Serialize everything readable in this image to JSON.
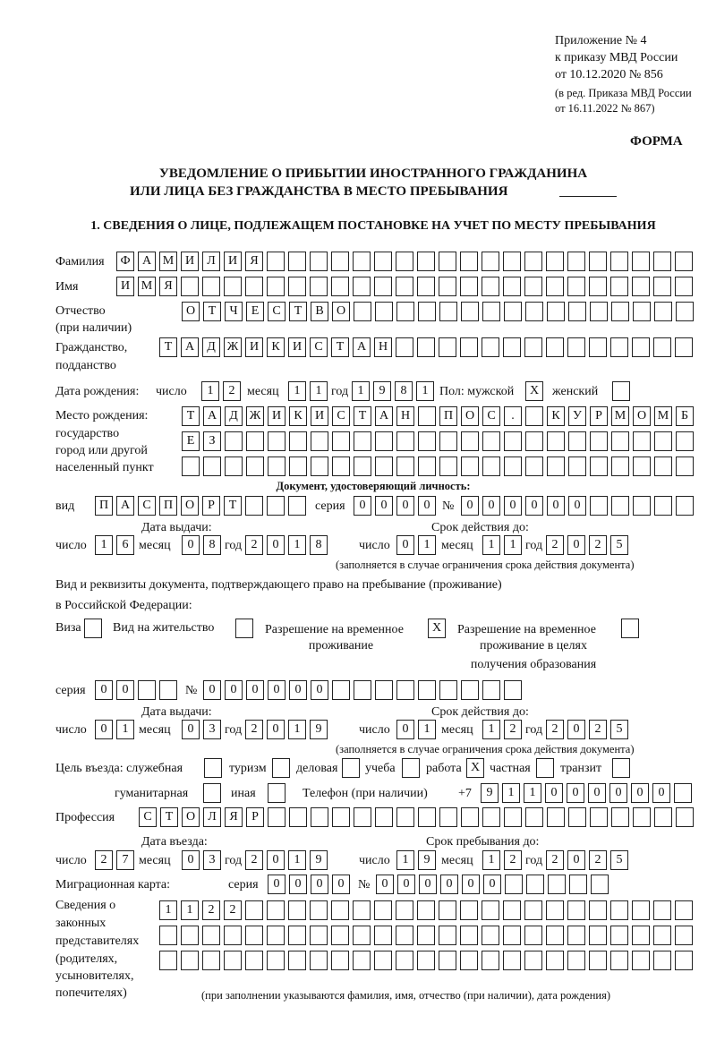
{
  "header": {
    "appendix": "Приложение № 4",
    "order": "к приказу МВД России",
    "order_date": "от 10.12.2020 № 856",
    "rev1": "(в ред. Приказа МВД России",
    "rev2": "от 16.11.2022 № 867)",
    "form": "ФОРМА"
  },
  "title": {
    "line1": "УВЕДОМЛЕНИЕ О ПРИБЫТИИ ИНОСТРАННОГО ГРАЖДАНИНА",
    "line2": "ИЛИ ЛИЦА БЕЗ ГРАЖДАНСТВА В МЕСТО ПРЕБЫВАНИЯ"
  },
  "section1": "1. СВЕДЕНИЯ О ЛИЦЕ, ПОДЛЕЖАЩЕМ ПОСТАНОВКЕ НА УЧЕТ ПО МЕСТУ ПРЕБЫВАНИЯ",
  "labels": {
    "surname": "Фамилия",
    "name": "Имя",
    "patronymic": "Отчество",
    "patronymic2": "(при наличии)",
    "citizenship": "Гражданство,",
    "citizenship2": "подданство",
    "birth_date": "Дата рождения:",
    "day": "число",
    "month": "месяц",
    "year": "год",
    "sex": "Пол: мужской",
    "female": "женский",
    "birthplace1": "Место рождения:",
    "birthplace2": "государство",
    "birthplace3": "город или другой",
    "birthplace4": "населенный пункт",
    "id_doc": "Документ, удостоверяющий личность:",
    "kind": "вид",
    "series": "серия",
    "number": "№",
    "issue_date": "Дата выдачи:",
    "valid_until": "Срок действия до:",
    "valid_note": "(заполняется в случае ограничения срока действия документа)",
    "stay_doc1": "Вид и реквизиты документа, подтверждающего право на пребывание (проживание)",
    "stay_doc2": "в Российской Федерации:",
    "visa": "Виза",
    "residence": "Вид на жительство",
    "trp1": "Разрешение на временное",
    "trp2": "проживание",
    "trpe1": "Разрешение на временное",
    "trpe2": "проживание в целях",
    "trpe3": "получения образования",
    "purpose": "Цель въезда: служебная",
    "tourism": "туризм",
    "business": "деловая",
    "study": "учеба",
    "work": "работа",
    "private": "частная",
    "transit": "транзит",
    "humanitarian": "гуманитарная",
    "other": "иная",
    "phone": "Телефон (при наличии)",
    "phone_prefix": "+7",
    "profession": "Профессия",
    "entry_date": "Дата въезда:",
    "stay_until": "Срок пребывания до:",
    "migration_card": "Миграционная карта:",
    "rep1": "Сведения о",
    "rep2": "законных",
    "rep3": "представителях",
    "rep4": "(родителях,",
    "rep5": "усыновителях,",
    "rep6": "попечителях)",
    "rep_note": "(при заполнении указываются фамилия, имя, отчество (при наличии), дата рождения)"
  },
  "fields": {
    "surname": [
      "Ф",
      "А",
      "М",
      "И",
      "Л",
      "И",
      "Я",
      "",
      "",
      "",
      "",
      "",
      "",
      "",
      "",
      "",
      "",
      "",
      "",
      "",
      "",
      "",
      "",
      "",
      "",
      "",
      ""
    ],
    "name": [
      "И",
      "М",
      "Я",
      "",
      "",
      "",
      "",
      "",
      "",
      "",
      "",
      "",
      "",
      "",
      "",
      "",
      "",
      "",
      "",
      "",
      "",
      "",
      "",
      "",
      "",
      "",
      ""
    ],
    "patronymic": [
      "О",
      "Т",
      "Ч",
      "Е",
      "С",
      "Т",
      "В",
      "О",
      "",
      "",
      "",
      "",
      "",
      "",
      "",
      "",
      "",
      "",
      "",
      "",
      "",
      "",
      "",
      ""
    ],
    "citizenship": [
      "Т",
      "А",
      "Д",
      "Ж",
      "И",
      "К",
      "И",
      "С",
      "Т",
      "А",
      "Н",
      "",
      "",
      "",
      "",
      "",
      "",
      "",
      "",
      "",
      "",
      "",
      "",
      "",
      ""
    ],
    "birth_day": [
      "1",
      "2"
    ],
    "birth_month": [
      "1",
      "1"
    ],
    "birth_year": [
      "1",
      "9",
      "8",
      "1"
    ],
    "sex_male": [
      "X"
    ],
    "sex_female": [
      ""
    ],
    "birthplace1": [
      "Т",
      "А",
      "Д",
      "Ж",
      "И",
      "К",
      "И",
      "С",
      "Т",
      "А",
      "Н",
      "",
      "П",
      "О",
      "С",
      ".",
      "",
      "К",
      "У",
      "Р",
      "М",
      "О",
      "М",
      "Б"
    ],
    "birthplace2": [
      "Е",
      "З",
      "",
      "",
      "",
      "",
      "",
      "",
      "",
      "",
      "",
      "",
      "",
      "",
      "",
      "",
      "",
      "",
      "",
      "",
      "",
      "",
      "",
      ""
    ],
    "birthplace3": [
      "",
      "",
      "",
      "",
      "",
      "",
      "",
      "",
      "",
      "",
      "",
      "",
      "",
      "",
      "",
      "",
      "",
      "",
      "",
      "",
      "",
      "",
      "",
      ""
    ],
    "doc_kind": [
      "П",
      "А",
      "С",
      "П",
      "О",
      "Р",
      "Т",
      "",
      "",
      ""
    ],
    "doc_series": [
      "0",
      "0",
      "0",
      "0"
    ],
    "doc_number": [
      "0",
      "0",
      "0",
      "0",
      "0",
      "0",
      "",
      "",
      "",
      "",
      ""
    ],
    "doc_issue_day": [
      "1",
      "6"
    ],
    "doc_issue_month": [
      "0",
      "8"
    ],
    "doc_issue_year": [
      "2",
      "0",
      "1",
      "8"
    ],
    "doc_valid_day": [
      "0",
      "1"
    ],
    "doc_valid_month": [
      "1",
      "1"
    ],
    "doc_valid_year": [
      "2",
      "0",
      "2",
      "5"
    ],
    "visa": [
      ""
    ],
    "residence": [
      ""
    ],
    "trp": [
      "X"
    ],
    "trpe": [
      ""
    ],
    "stay_series": [
      "0",
      "0",
      "",
      ""
    ],
    "stay_number": [
      "0",
      "0",
      "0",
      "0",
      "0",
      "0",
      "",
      "",
      "",
      "",
      "",
      "",
      "",
      "",
      ""
    ],
    "stay_issue_day": [
      "0",
      "1"
    ],
    "stay_issue_month": [
      "0",
      "3"
    ],
    "stay_issue_year": [
      "2",
      "0",
      "1",
      "9"
    ],
    "stay_valid_day": [
      "0",
      "1"
    ],
    "stay_valid_month": [
      "1",
      "2"
    ],
    "stay_valid_year": [
      "2",
      "0",
      "2",
      "5"
    ],
    "p_official": [
      ""
    ],
    "p_tourism": [
      ""
    ],
    "p_business": [
      ""
    ],
    "p_study": [
      ""
    ],
    "p_work": [
      "X"
    ],
    "p_private": [
      ""
    ],
    "p_transit": [
      ""
    ],
    "p_humanitarian": [
      ""
    ],
    "p_other": [
      ""
    ],
    "phone": [
      "9",
      "1",
      "1",
      "0",
      "0",
      "0",
      "0",
      "0",
      "0",
      ""
    ],
    "profession": [
      "С",
      "Т",
      "О",
      "Л",
      "Я",
      "Р",
      "",
      "",
      "",
      "",
      "",
      "",
      "",
      "",
      "",
      "",
      "",
      "",
      "",
      "",
      "",
      "",
      "",
      "",
      "",
      ""
    ],
    "entry_day": [
      "2",
      "7"
    ],
    "entry_month": [
      "0",
      "3"
    ],
    "entry_year": [
      "2",
      "0",
      "1",
      "9"
    ],
    "until_day": [
      "1",
      "9"
    ],
    "until_month": [
      "1",
      "2"
    ],
    "until_year": [
      "2",
      "0",
      "2",
      "5"
    ],
    "mig_series": [
      "0",
      "0",
      "0",
      "0"
    ],
    "mig_number": [
      "0",
      "0",
      "0",
      "0",
      "0",
      "0",
      "",
      "",
      "",
      "",
      ""
    ],
    "rep1": [
      "1",
      "1",
      "2",
      "2",
      "",
      "",
      "",
      "",
      "",
      "",
      "",
      "",
      "",
      "",
      "",
      "",
      "",
      "",
      "",
      "",
      "",
      "",
      "",
      "",
      ""
    ],
    "rep2": [
      "",
      "",
      "",
      "",
      "",
      "",
      "",
      "",
      "",
      "",
      "",
      "",
      "",
      "",
      "",
      "",
      "",
      "",
      "",
      "",
      "",
      "",
      "",
      "",
      ""
    ],
    "rep3": [
      "",
      "",
      "",
      "",
      "",
      "",
      "",
      "",
      "",
      "",
      "",
      "",
      "",
      "",
      "",
      "",
      "",
      "",
      "",
      "",
      "",
      "",
      "",
      "",
      ""
    ]
  }
}
